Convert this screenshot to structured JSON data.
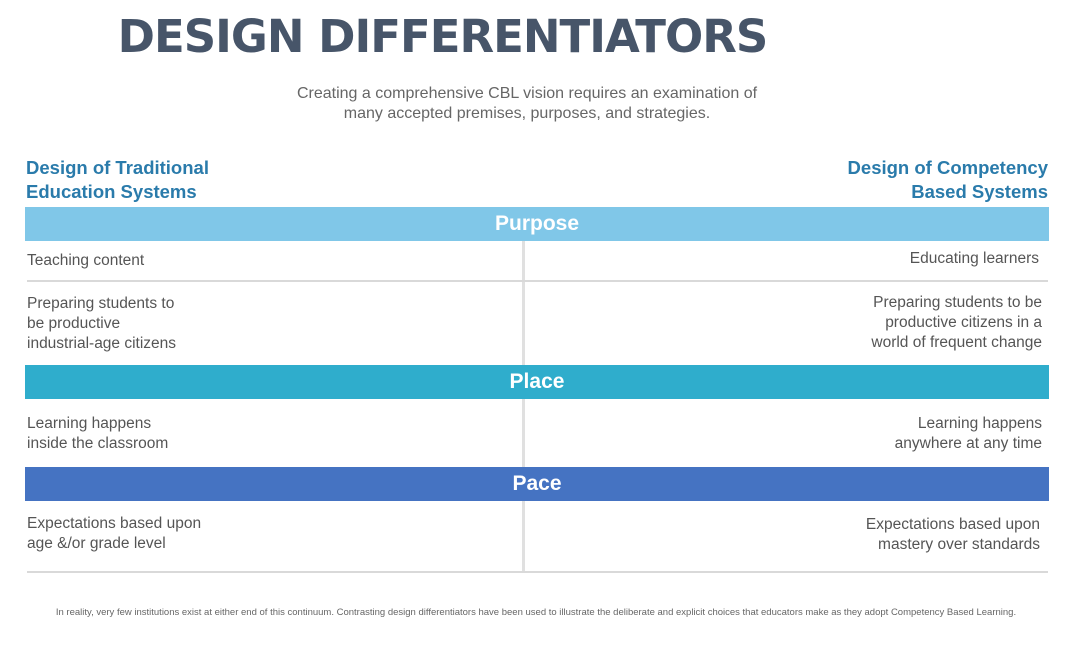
{
  "title": "DESIGN DIFFERENTIATORS",
  "subtitle": "Creating a comprehensive CBL vision requires an examination of\nmany accepted premises, purposes, and strategies.",
  "columns": {
    "left_heading": "Design of Traditional\nEducation Systems",
    "right_heading": "Design of Competency\nBased Systems"
  },
  "sections": [
    {
      "heading": "Purpose",
      "color": "#80c7e8",
      "rows": [
        {
          "traditional": "Teaching content",
          "competency": "Educating learners"
        },
        {
          "traditional": "Preparing students to\nbe productive\nindustrial-age citizens",
          "competency": "Preparing students to be\nproductive citizens in a\nworld of frequent change"
        }
      ]
    },
    {
      "heading": "Place",
      "color": "#2fadcc",
      "rows": [
        {
          "traditional": "Learning happens\ninside the classroom",
          "competency": "Learning happens\nanywhere at any time"
        }
      ]
    },
    {
      "heading": "Pace",
      "color": "#4573c2",
      "rows": [
        {
          "traditional": "Expectations based upon\nage &/or grade level",
          "competency": "Expectations based upon\nmastery over standards"
        }
      ]
    }
  ],
  "footnote": "In reality, very few institutions exist at either end of this continuum. Contrasting design differentiators have been used to illustrate the deliberate and explicit choices that educators make as they adopt Competency Based Learning."
}
